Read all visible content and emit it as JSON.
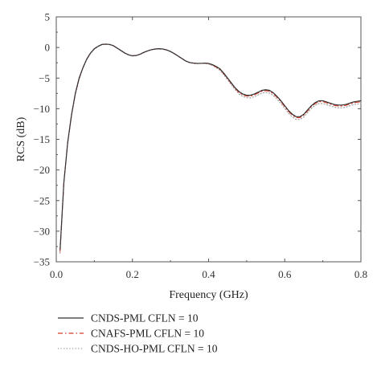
{
  "chart_data": {
    "type": "line",
    "xlabel": "Frequency (GHz)",
    "ylabel": "RCS (dB)",
    "xlim": [
      0,
      0.8
    ],
    "ylim": [
      -35,
      5
    ],
    "xticks": [
      0,
      0.2,
      0.4,
      0.6,
      0.8
    ],
    "xtick_labels": [
      "0.0",
      "0.2",
      "0.4",
      "0.6",
      "0.8"
    ],
    "yticks": [
      5,
      0,
      -5,
      -10,
      -15,
      -20,
      -25,
      -30,
      -35
    ],
    "ytick_labels": [
      "5",
      "0",
      "−5",
      "−10",
      "−15",
      "−20",
      "−25",
      "−30",
      "−35"
    ],
    "grid": false,
    "legend_position": "bottom",
    "series": [
      {
        "name": "CNDS-PML CFLN = 10",
        "color": "#333333",
        "style": "solid",
        "x": [
          0.01,
          0.02,
          0.03,
          0.04,
          0.05,
          0.06,
          0.07,
          0.08,
          0.09,
          0.1,
          0.11,
          0.12,
          0.13,
          0.14,
          0.15,
          0.16,
          0.17,
          0.18,
          0.19,
          0.2,
          0.21,
          0.22,
          0.23,
          0.24,
          0.25,
          0.26,
          0.27,
          0.28,
          0.29,
          0.3,
          0.31,
          0.32,
          0.33,
          0.34,
          0.35,
          0.36,
          0.37,
          0.38,
          0.39,
          0.4,
          0.41,
          0.42,
          0.43,
          0.44,
          0.45,
          0.46,
          0.47,
          0.48,
          0.49,
          0.5,
          0.51,
          0.52,
          0.53,
          0.54,
          0.55,
          0.56,
          0.57,
          0.58,
          0.59,
          0.6,
          0.61,
          0.62,
          0.63,
          0.64,
          0.65,
          0.66,
          0.67,
          0.68,
          0.69,
          0.7,
          0.71,
          0.72,
          0.73,
          0.74,
          0.75,
          0.76,
          0.77,
          0.78,
          0.79,
          0.8
        ],
        "y": [
          -33.0,
          -22.0,
          -15.5,
          -11.0,
          -7.5,
          -5.0,
          -3.3,
          -1.9,
          -0.9,
          -0.2,
          0.2,
          0.5,
          0.55,
          0.5,
          0.3,
          -0.1,
          -0.5,
          -0.9,
          -1.2,
          -1.35,
          -1.3,
          -1.1,
          -0.8,
          -0.55,
          -0.35,
          -0.25,
          -0.2,
          -0.25,
          -0.4,
          -0.65,
          -1.0,
          -1.4,
          -1.8,
          -2.2,
          -2.45,
          -2.55,
          -2.6,
          -2.6,
          -2.55,
          -2.6,
          -2.8,
          -3.1,
          -3.5,
          -4.2,
          -5.0,
          -5.8,
          -6.6,
          -7.2,
          -7.6,
          -7.8,
          -7.8,
          -7.6,
          -7.3,
          -7.0,
          -6.9,
          -7.0,
          -7.4,
          -8.0,
          -8.7,
          -9.5,
          -10.3,
          -10.9,
          -11.3,
          -11.3,
          -10.9,
          -10.2,
          -9.5,
          -9.0,
          -8.7,
          -8.7,
          -8.9,
          -9.1,
          -9.3,
          -9.4,
          -9.4,
          -9.3,
          -9.1,
          -8.9,
          -8.8,
          -8.7
        ]
      },
      {
        "name": "CNAFS-PML CFLN = 10",
        "color": "#d83a2a",
        "style": "dashdot",
        "x": [
          0.01,
          0.02,
          0.03,
          0.04,
          0.05,
          0.06,
          0.07,
          0.08,
          0.09,
          0.1,
          0.11,
          0.12,
          0.13,
          0.14,
          0.15,
          0.16,
          0.17,
          0.18,
          0.19,
          0.2,
          0.21,
          0.22,
          0.23,
          0.24,
          0.25,
          0.26,
          0.27,
          0.28,
          0.29,
          0.3,
          0.31,
          0.32,
          0.33,
          0.34,
          0.35,
          0.36,
          0.37,
          0.38,
          0.39,
          0.4,
          0.41,
          0.42,
          0.43,
          0.44,
          0.45,
          0.46,
          0.47,
          0.48,
          0.49,
          0.5,
          0.51,
          0.52,
          0.53,
          0.54,
          0.55,
          0.56,
          0.57,
          0.58,
          0.59,
          0.6,
          0.61,
          0.62,
          0.63,
          0.64,
          0.65,
          0.66,
          0.67,
          0.68,
          0.69,
          0.7,
          0.71,
          0.72,
          0.73,
          0.74,
          0.75,
          0.76,
          0.77,
          0.78,
          0.79,
          0.8
        ],
        "y": [
          -33.3,
          -22.1,
          -15.6,
          -11.1,
          -7.6,
          -5.1,
          -3.3,
          -1.9,
          -0.9,
          -0.2,
          0.2,
          0.5,
          0.55,
          0.5,
          0.3,
          -0.1,
          -0.5,
          -0.9,
          -1.2,
          -1.35,
          -1.3,
          -1.1,
          -0.8,
          -0.55,
          -0.35,
          -0.25,
          -0.2,
          -0.25,
          -0.4,
          -0.65,
          -1.0,
          -1.4,
          -1.8,
          -2.2,
          -2.45,
          -2.55,
          -2.6,
          -2.6,
          -2.55,
          -2.65,
          -2.85,
          -3.2,
          -3.6,
          -4.3,
          -5.1,
          -5.9,
          -6.7,
          -7.35,
          -7.75,
          -7.95,
          -7.95,
          -7.75,
          -7.45,
          -7.15,
          -7.05,
          -7.15,
          -7.55,
          -8.15,
          -8.85,
          -9.65,
          -10.45,
          -11.05,
          -11.45,
          -11.45,
          -11.05,
          -10.35,
          -9.65,
          -9.15,
          -8.85,
          -8.85,
          -9.05,
          -9.25,
          -9.45,
          -9.55,
          -9.55,
          -9.45,
          -9.25,
          -9.05,
          -8.95,
          -8.85
        ]
      },
      {
        "name": "CNDS-HO-PML CFLN = 10",
        "color": "#999999",
        "style": "dotted",
        "x": [
          0.01,
          0.02,
          0.03,
          0.04,
          0.05,
          0.06,
          0.07,
          0.08,
          0.09,
          0.1,
          0.11,
          0.12,
          0.13,
          0.14,
          0.15,
          0.16,
          0.17,
          0.18,
          0.19,
          0.2,
          0.21,
          0.22,
          0.23,
          0.24,
          0.25,
          0.26,
          0.27,
          0.28,
          0.29,
          0.3,
          0.31,
          0.32,
          0.33,
          0.34,
          0.35,
          0.36,
          0.37,
          0.38,
          0.39,
          0.4,
          0.41,
          0.42,
          0.43,
          0.44,
          0.45,
          0.46,
          0.47,
          0.48,
          0.49,
          0.5,
          0.51,
          0.52,
          0.53,
          0.54,
          0.55,
          0.56,
          0.57,
          0.58,
          0.59,
          0.6,
          0.61,
          0.62,
          0.63,
          0.64,
          0.65,
          0.66,
          0.67,
          0.68,
          0.69,
          0.7,
          0.71,
          0.72,
          0.73,
          0.74,
          0.75,
          0.76,
          0.77,
          0.78,
          0.79,
          0.8
        ],
        "y": [
          -33.6,
          -22.2,
          -15.7,
          -11.2,
          -7.7,
          -5.2,
          -3.4,
          -2.0,
          -1.0,
          -0.3,
          0.15,
          0.45,
          0.5,
          0.45,
          0.25,
          -0.15,
          -0.55,
          -0.95,
          -1.25,
          -1.4,
          -1.35,
          -1.15,
          -0.85,
          -0.6,
          -0.4,
          -0.3,
          -0.25,
          -0.3,
          -0.45,
          -0.7,
          -1.05,
          -1.45,
          -1.85,
          -2.25,
          -2.5,
          -2.6,
          -2.65,
          -2.6,
          -2.6,
          -2.7,
          -2.95,
          -3.3,
          -3.75,
          -4.45,
          -5.3,
          -6.1,
          -6.9,
          -7.6,
          -8.0,
          -8.2,
          -8.25,
          -8.05,
          -7.75,
          -7.45,
          -7.35,
          -7.45,
          -7.85,
          -8.45,
          -9.15,
          -9.95,
          -10.75,
          -11.35,
          -11.75,
          -11.75,
          -11.35,
          -10.65,
          -9.95,
          -9.45,
          -9.15,
          -9.15,
          -9.35,
          -9.55,
          -9.75,
          -9.85,
          -9.85,
          -9.75,
          -9.55,
          -9.35,
          -9.25,
          -9.15
        ]
      }
    ]
  }
}
